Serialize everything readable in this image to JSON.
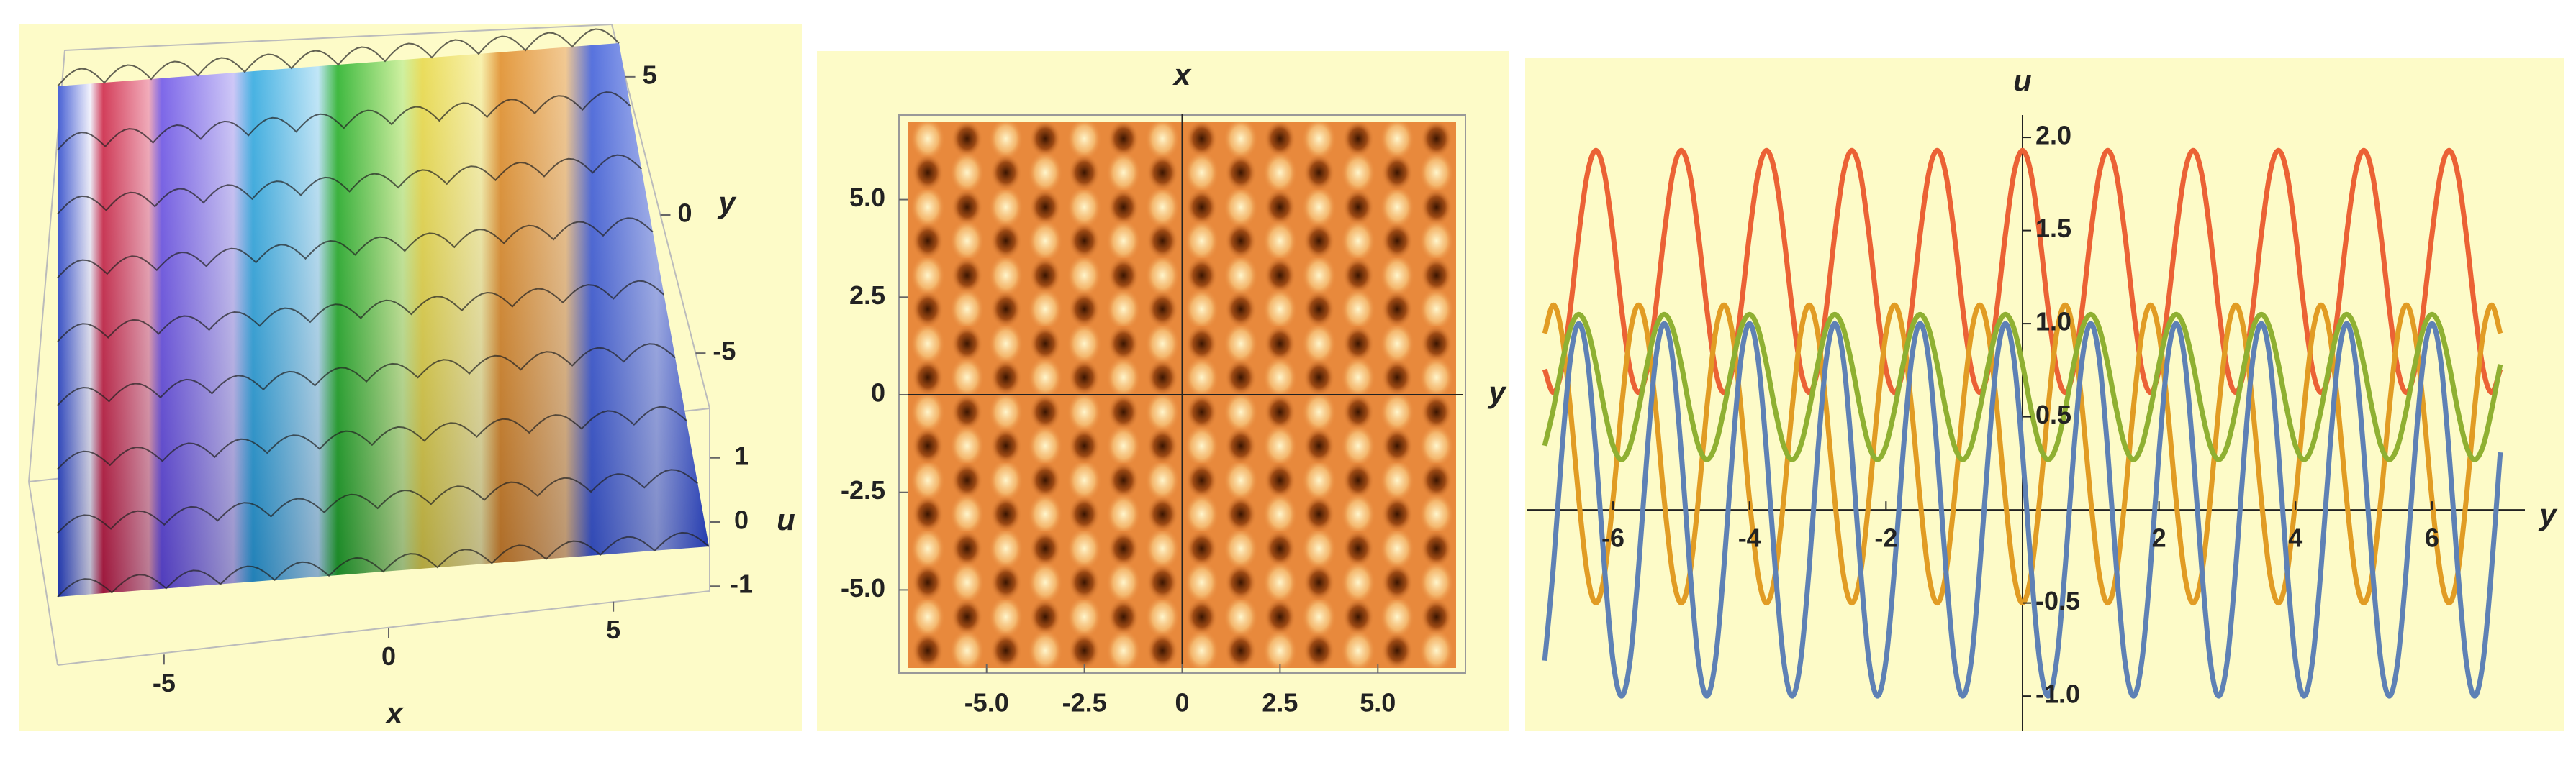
{
  "chart_data": [
    {
      "type": "surface3d",
      "xlabel": "x",
      "ylabel": "y",
      "zlabel": "u",
      "xlim": [
        -7,
        7
      ],
      "xticks": [
        -5,
        0,
        5
      ],
      "ylim": [
        -7,
        7
      ],
      "yticks": [
        -5,
        0,
        5
      ],
      "zlim": [
        -1.3,
        1.3
      ],
      "zticks": [
        -1,
        0,
        1
      ]
    },
    {
      "type": "density",
      "xlabel": "y",
      "ylabel": "x",
      "xlim": [
        -7,
        7
      ],
      "ylim": [
        -7,
        7
      ],
      "xticks": [
        {
          "value": -5,
          "label": "-5.0"
        },
        -2.5,
        0,
        2.5,
        {
          "value": 5,
          "label": "5.0"
        }
      ],
      "yticks": [
        {
          "value": -5,
          "label": "-5.0"
        },
        -2.5,
        0,
        2.5,
        {
          "value": 5,
          "label": "5.0"
        }
      ]
    },
    {
      "type": "line",
      "xlabel": "y",
      "ylabel": "u",
      "xlim": [
        -7.15,
        7.15
      ],
      "ylim": [
        -1.15,
        2.12
      ],
      "xticks": [
        -6,
        -4,
        -2,
        2,
        4,
        6
      ],
      "yticks": [
        {
          "value": -1,
          "label": "-1.0"
        },
        -0.5,
        0.5,
        {
          "value": 1,
          "label": "1.0"
        },
        1.5,
        {
          "value": 2,
          "label": "2.0"
        }
      ],
      "x": [
        -7,
        -6.875,
        -6.75,
        -6.625,
        -6.5,
        -6.375,
        -6.25,
        -6.125,
        -6,
        -5.875,
        -5.75,
        -5.625,
        -5.5,
        -5.375,
        -5.25,
        -5.125,
        -5,
        -4.875,
        -4.75,
        -4.625,
        -4.5,
        -4.375,
        -4.25,
        -4.125,
        -4,
        -3.875,
        -3.75,
        -3.625,
        -3.5,
        -3.375,
        -3.25,
        -3.125,
        -3,
        -2.875,
        -2.75,
        -2.625,
        -2.5,
        -2.375,
        -2.25,
        -2.125,
        -2,
        -1.875,
        -1.75,
        -1.625,
        -1.5,
        -1.375,
        -1.25,
        -1.125,
        -1,
        -0.875,
        -0.75,
        -0.625,
        -0.5,
        -0.375,
        -0.25,
        -0.125,
        0,
        0.125,
        0.25,
        0.375,
        0.5,
        0.625,
        0.75,
        0.875,
        1,
        1.125,
        1.25,
        1.375,
        1.5,
        1.625,
        1.75,
        1.875,
        2,
        2.125,
        2.25,
        2.375,
        2.5,
        2.625,
        2.75,
        2.875,
        3,
        3.125,
        3.25,
        3.375,
        3.5,
        3.625,
        3.75,
        3.875,
        4,
        4.125,
        4.25,
        4.375,
        4.5,
        4.625,
        4.75,
        4.875,
        5,
        5.125,
        5.25,
        5.375,
        5.5,
        5.625,
        5.75,
        5.875,
        6,
        6.125,
        6.25,
        6.375,
        6.5,
        6.625,
        6.75,
        6.875,
        7
      ],
      "series": [
        {
          "color": "#EB6235",
          "values": [
            0.754,
            0.63,
            0.754,
            1.079,
            1.481,
            1.806,
            1.93,
            1.806,
            1.481,
            1.079,
            0.754,
            0.63,
            0.754,
            1.079,
            1.481,
            1.806,
            1.93,
            1.806,
            1.481,
            1.079,
            0.754,
            0.63,
            0.754,
            1.079,
            1.481,
            1.806,
            1.93,
            1.806,
            1.481,
            1.079,
            0.754,
            0.63,
            0.754,
            1.079,
            1.481,
            1.806,
            1.93,
            1.806,
            1.481,
            1.079,
            0.754,
            0.63,
            0.754,
            1.079,
            1.481,
            1.806,
            1.93,
            1.806,
            1.481,
            1.079,
            0.754,
            0.63,
            0.754,
            1.079,
            1.481,
            1.806,
            1.93,
            1.806,
            1.481,
            1.079,
            0.754,
            0.63,
            0.754,
            1.079,
            1.481,
            1.806,
            1.93,
            1.806,
            1.481,
            1.079,
            0.754,
            0.63,
            0.754,
            1.079,
            1.481,
            1.806,
            1.93,
            1.806,
            1.481,
            1.079,
            0.754,
            0.63,
            0.754,
            1.079,
            1.481,
            1.806,
            1.93,
            1.806,
            1.481,
            1.079,
            0.754,
            0.63,
            0.754,
            1.079,
            1.481,
            1.806,
            1.93,
            1.806,
            1.481,
            1.079,
            0.754,
            0.63,
            0.754,
            1.079,
            1.481,
            1.806,
            1.93,
            1.806,
            1.481,
            1.079,
            0.754,
            0.63,
            0.754
          ]
        },
        {
          "color": "#E19C24",
          "values": [
            0.947,
            1.1,
            0.947,
            0.547,
            0.053,
            -0.347,
            -0.5,
            -0.347,
            0.053,
            0.547,
            0.947,
            1.1,
            0.947,
            0.547,
            0.053,
            -0.347,
            -0.5,
            -0.347,
            0.053,
            0.547,
            0.947,
            1.1,
            0.947,
            0.547,
            0.053,
            -0.347,
            -0.5,
            -0.347,
            0.053,
            0.547,
            0.947,
            1.1,
            0.947,
            0.547,
            0.053,
            -0.347,
            -0.5,
            -0.347,
            0.053,
            0.547,
            0.947,
            1.1,
            0.947,
            0.547,
            0.053,
            -0.347,
            -0.5,
            -0.347,
            0.053,
            0.547,
            0.947,
            1.1,
            0.947,
            0.547,
            0.053,
            -0.347,
            -0.5,
            -0.347,
            0.053,
            0.547,
            0.947,
            1.1,
            0.947,
            0.547,
            0.053,
            -0.347,
            -0.5,
            -0.347,
            0.053,
            0.547,
            0.947,
            1.1,
            0.947,
            0.547,
            0.053,
            -0.347,
            -0.5,
            -0.347,
            0.053,
            0.547,
            0.947,
            1.1,
            0.947,
            0.547,
            0.053,
            -0.347,
            -0.5,
            -0.347,
            0.053,
            0.547,
            0.947,
            1.1,
            0.947,
            0.547,
            0.053,
            -0.347,
            -0.5,
            -0.347,
            0.053,
            0.547,
            0.947,
            1.1,
            0.947,
            0.547,
            0.053,
            -0.347,
            -0.5,
            -0.347,
            0.053,
            0.547,
            0.947,
            1.1,
            0.947
          ]
        },
        {
          "color": "#5E81B5",
          "values": [
            -0.809,
            -0.309,
            0.309,
            0.809,
            1,
            0.809,
            0.309,
            -0.309,
            -0.809,
            -1,
            -0.809,
            -0.309,
            0.309,
            0.809,
            1,
            0.809,
            0.309,
            -0.309,
            -0.809,
            -1,
            -0.809,
            -0.309,
            0.309,
            0.809,
            1,
            0.809,
            0.309,
            -0.309,
            -0.809,
            -1,
            -0.809,
            -0.309,
            0.309,
            0.809,
            1,
            0.809,
            0.309,
            -0.309,
            -0.809,
            -1,
            -0.809,
            -0.309,
            0.309,
            0.809,
            1,
            0.809,
            0.309,
            -0.309,
            -0.809,
            -1,
            -0.809,
            -0.309,
            0.309,
            0.809,
            1,
            0.809,
            0.309,
            -0.309,
            -0.809,
            -1,
            -0.809,
            -0.309,
            0.309,
            0.809,
            1,
            0.809,
            0.309,
            -0.309,
            -0.809,
            -1,
            -0.809,
            -0.309,
            0.309,
            0.809,
            1,
            0.809,
            0.309,
            -0.309,
            -0.809,
            -1,
            -0.809,
            -0.309,
            0.309,
            0.809,
            1,
            0.809,
            0.309,
            -0.309,
            -0.809,
            -1,
            -0.809,
            -0.309,
            0.309,
            0.809,
            1,
            0.809,
            0.309,
            -0.309,
            -0.809,
            -1,
            -0.809,
            -0.309,
            0.309,
            0.809,
            1,
            0.809,
            0.309,
            -0.309,
            -0.809,
            -1,
            -0.809,
            -0.309,
            0.309
          ]
        },
        {
          "color": "#8FB032",
          "values": [
            0.345,
            0.539,
            0.781,
            0.975,
            1.05,
            0.975,
            0.781,
            0.539,
            0.345,
            0.27,
            0.345,
            0.539,
            0.781,
            0.975,
            1.05,
            0.975,
            0.781,
            0.539,
            0.345,
            0.27,
            0.345,
            0.539,
            0.781,
            0.975,
            1.05,
            0.975,
            0.781,
            0.539,
            0.345,
            0.27,
            0.345,
            0.539,
            0.781,
            0.975,
            1.05,
            0.975,
            0.781,
            0.539,
            0.345,
            0.27,
            0.345,
            0.539,
            0.781,
            0.975,
            1.05,
            0.975,
            0.781,
            0.539,
            0.345,
            0.27,
            0.345,
            0.539,
            0.781,
            0.975,
            1.05,
            0.975,
            0.781,
            0.539,
            0.345,
            0.27,
            0.345,
            0.539,
            0.781,
            0.975,
            1.05,
            0.975,
            0.781,
            0.539,
            0.345,
            0.27,
            0.345,
            0.539,
            0.781,
            0.975,
            1.05,
            0.975,
            0.781,
            0.539,
            0.345,
            0.27,
            0.345,
            0.539,
            0.781,
            0.975,
            1.05,
            0.975,
            0.781,
            0.539,
            0.345,
            0.27,
            0.345,
            0.539,
            0.781,
            0.975,
            1.05,
            0.975,
            0.781,
            0.539,
            0.345,
            0.27,
            0.345,
            0.539,
            0.781,
            0.975,
            1.05,
            0.975,
            0.781,
            0.539,
            0.345,
            0.27,
            0.345,
            0.539,
            0.781
          ]
        }
      ]
    }
  ]
}
